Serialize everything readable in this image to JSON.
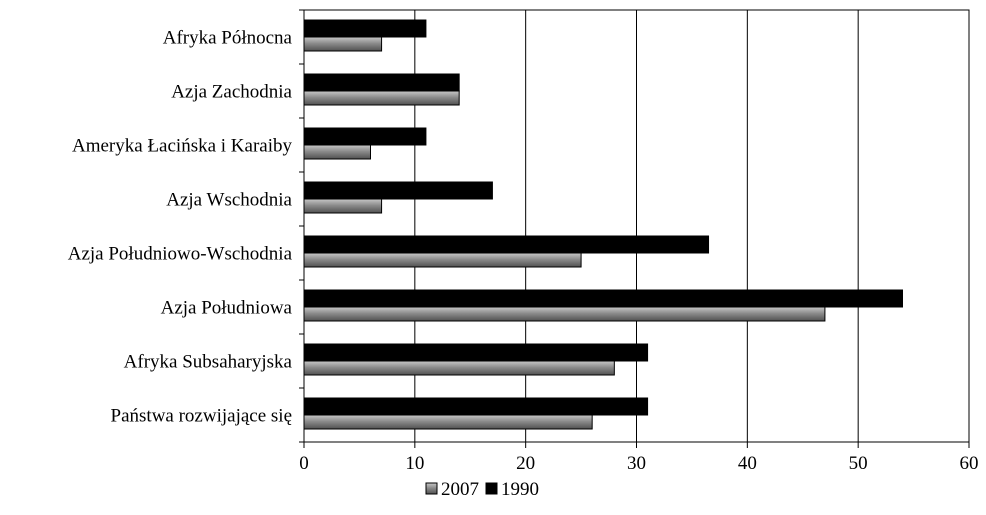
{
  "chart_data": {
    "type": "bar",
    "orientation": "horizontal",
    "categories": [
      "Afryka Północna",
      "Azja Zachodnia",
      "Ameryka Łacińska i Karaiby",
      "Azja Wschodnia",
      "Azja Południowo-Wschodnia",
      "Azja Południowa",
      "Afryka Subsaharyjska",
      "Państwa rozwijające się"
    ],
    "series": [
      {
        "name": "1990",
        "values": [
          11,
          14,
          11,
          17,
          36.5,
          54,
          31,
          31
        ],
        "color": "#000000"
      },
      {
        "name": "2007",
        "values": [
          7,
          14,
          6,
          7,
          25,
          47,
          28,
          26
        ],
        "color": "#808080"
      }
    ],
    "legend_order": [
      "2007",
      "1990"
    ],
    "xlim": [
      0,
      60
    ],
    "x_ticks": [
      "0",
      "10",
      "20",
      "30",
      "40",
      "50",
      "60"
    ],
    "grid": "vertical",
    "legend_position": "bottom",
    "title": "",
    "xlabel": "",
    "ylabel": ""
  }
}
